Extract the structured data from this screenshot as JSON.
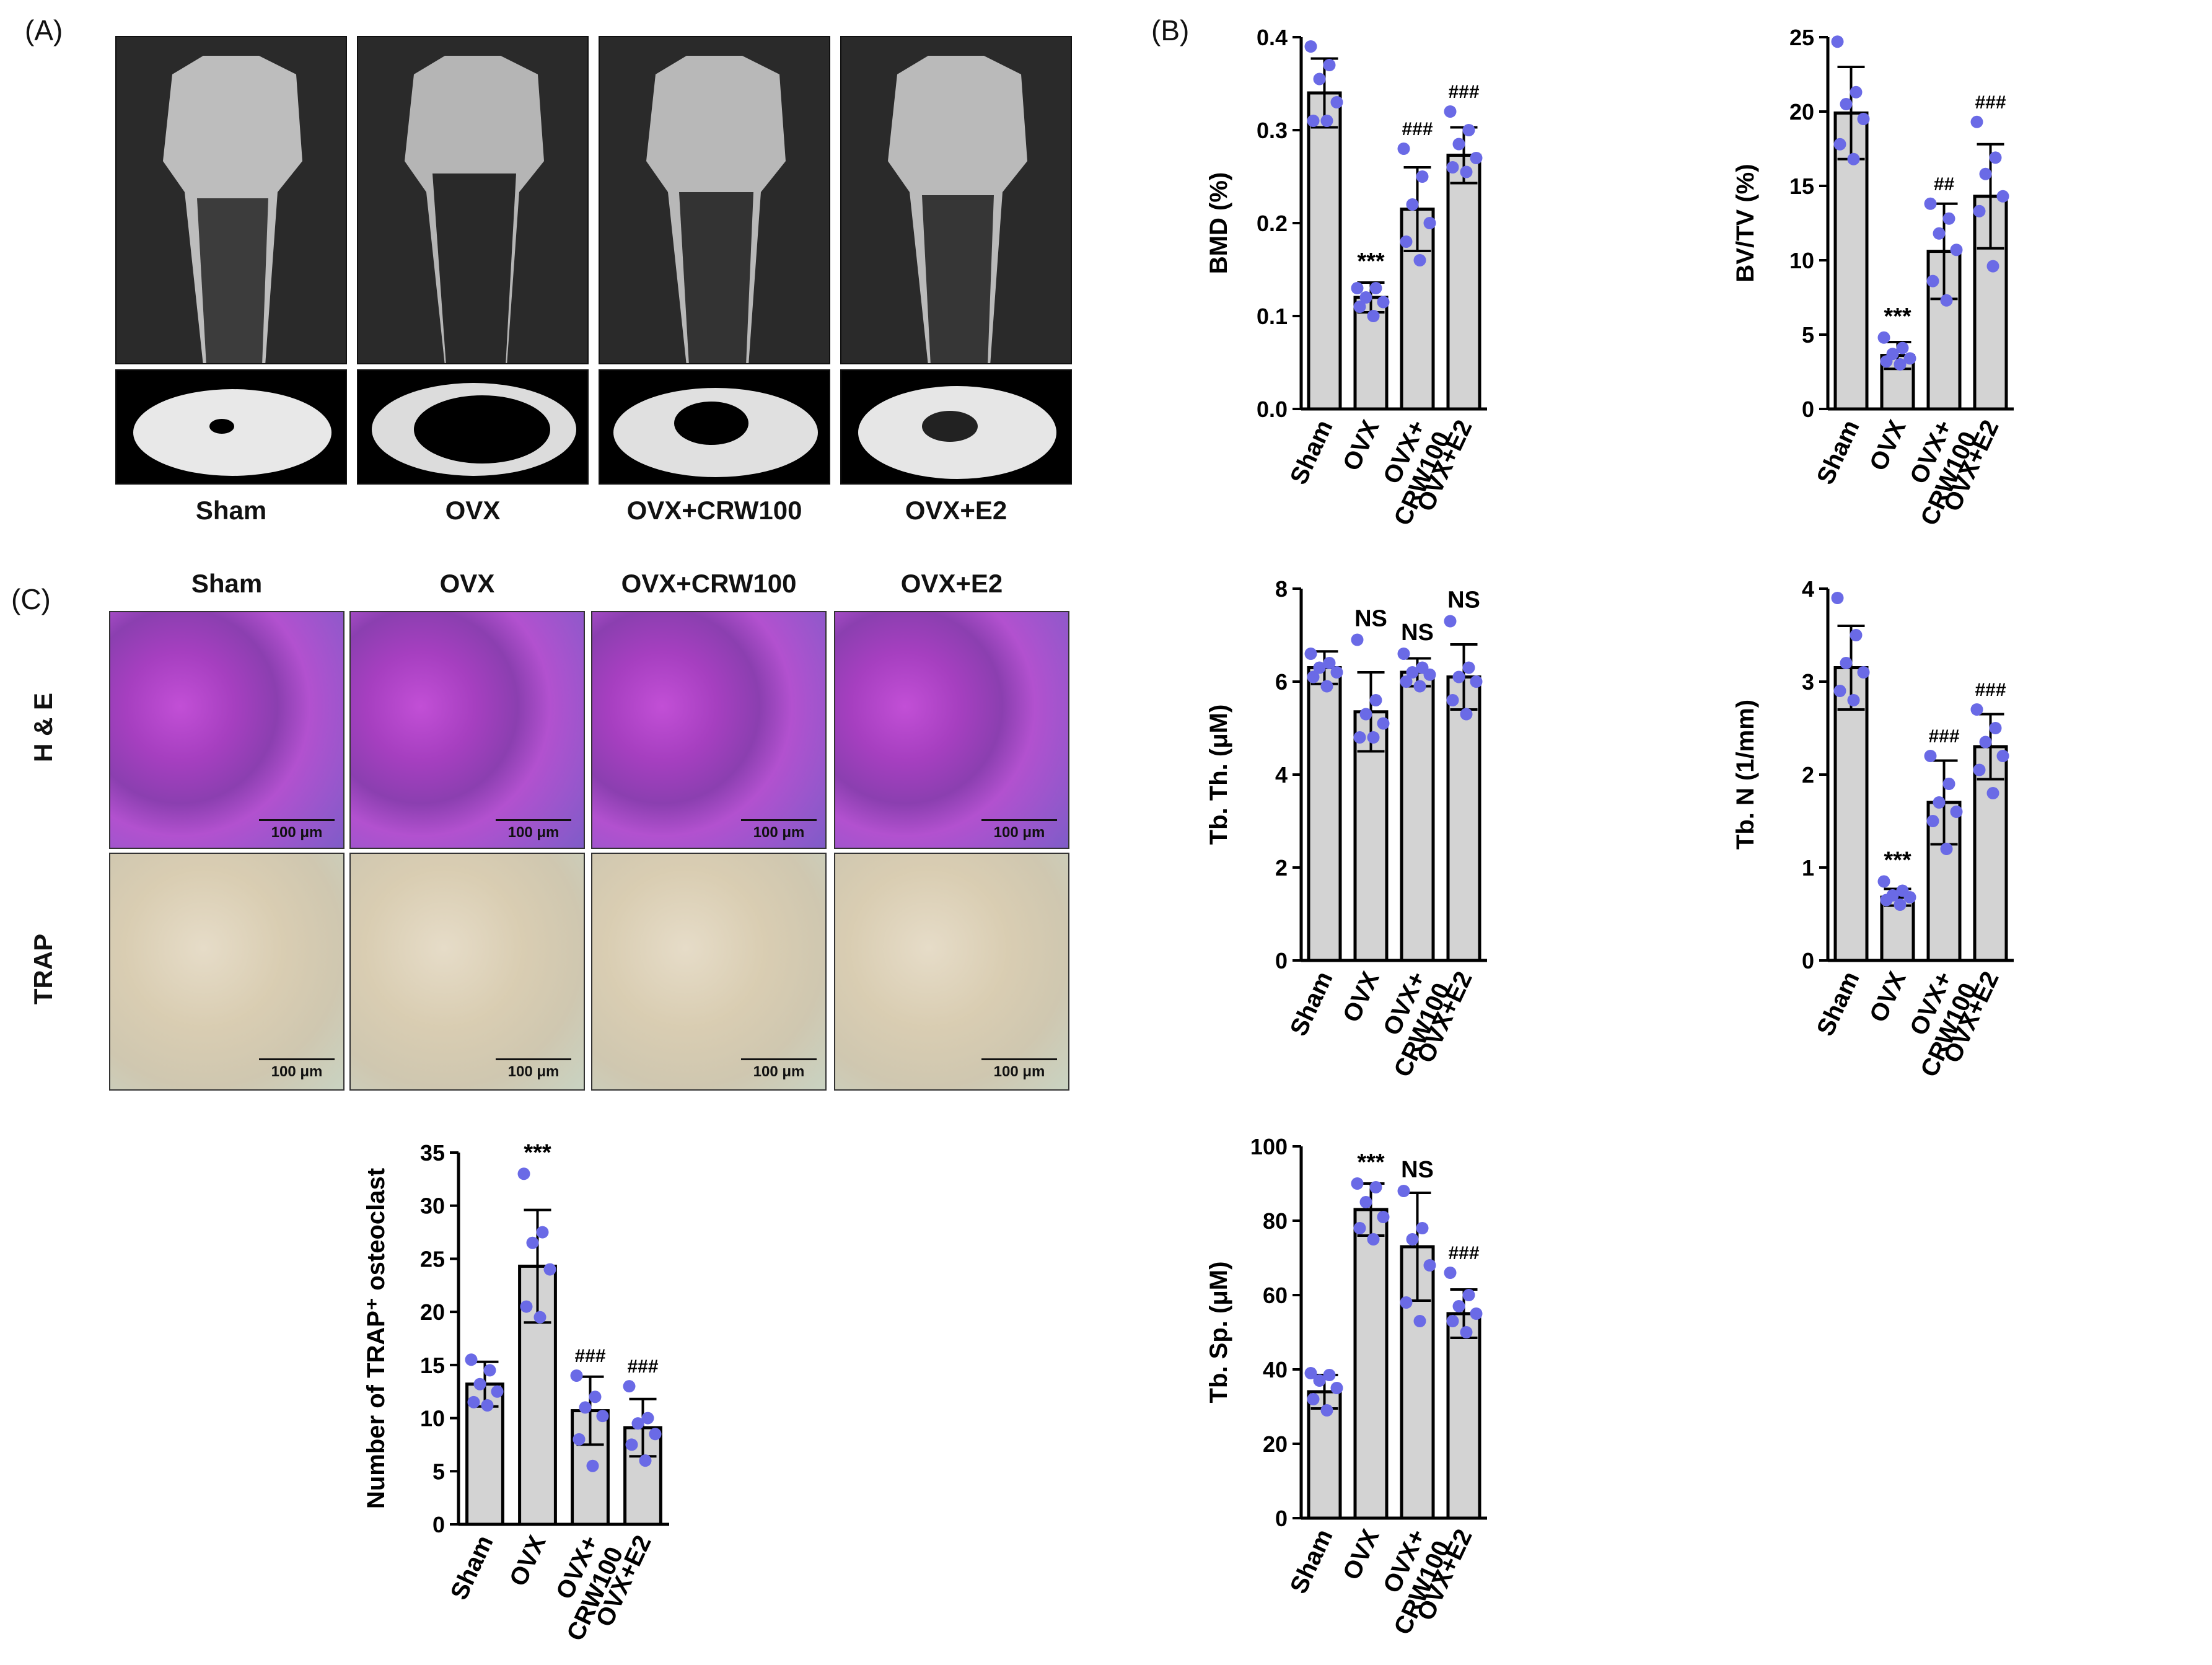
{
  "panels": {
    "a_label": "(A)",
    "b_label": "(B)",
    "c_label": "(C)"
  },
  "groups": [
    "Sham",
    "OVX",
    "OVX+CRW100",
    "OVX+E2"
  ],
  "histology": {
    "rows": [
      "H & E",
      "TRAP"
    ],
    "scale_label": "100 μm"
  },
  "colors": {
    "bar_fill": "#d3d3d3",
    "bar_stroke": "#000000",
    "point": "#6a6ae6"
  },
  "chart_data": [
    {
      "id": "bmd",
      "type": "bar",
      "ylabel": "BMD (%)",
      "categories": [
        "Sham",
        "OVX",
        "OVX+|CRW100",
        "OVX+E2"
      ],
      "values": [
        0.34,
        0.12,
        0.215,
        0.273
      ],
      "errors": [
        0.037,
        0.016,
        0.045,
        0.03
      ],
      "points": [
        [
          0.39,
          0.37,
          0.355,
          0.33,
          0.31,
          0.31
        ],
        [
          0.13,
          0.13,
          0.12,
          0.115,
          0.11,
          0.1
        ],
        [
          0.28,
          0.25,
          0.22,
          0.2,
          0.18,
          0.16
        ],
        [
          0.32,
          0.3,
          0.285,
          0.27,
          0.26,
          0.255
        ]
      ],
      "annotations": [
        "",
        "***",
        "###",
        "###"
      ],
      "ylim": [
        0,
        0.4
      ],
      "yticks": [
        0.0,
        0.1,
        0.2,
        0.3,
        0.4
      ],
      "tick_labels": [
        "0.0",
        "0.1",
        "0.2",
        "0.3",
        "0.4"
      ]
    },
    {
      "id": "bvtv",
      "type": "bar",
      "ylabel": "BV/TV (%)",
      "categories": [
        "Sham",
        "OVX",
        "OVX+|CRW100",
        "OVX+E2"
      ],
      "values": [
        19.9,
        3.6,
        10.6,
        14.3
      ],
      "errors": [
        3.1,
        0.9,
        3.2,
        3.5
      ],
      "points": [
        [
          24.7,
          21.3,
          20.5,
          19.5,
          17.8,
          16.8
        ],
        [
          4.8,
          4.1,
          3.7,
          3.4,
          3.2,
          3.0
        ],
        [
          13.8,
          12.8,
          11.8,
          10.7,
          8.6,
          7.3
        ],
        [
          19.3,
          16.9,
          15.8,
          14.3,
          13.3,
          9.6
        ]
      ],
      "annotations": [
        "",
        "***",
        "##",
        "###"
      ],
      "ylim": [
        0,
        25
      ],
      "yticks": [
        0,
        5,
        10,
        15,
        20,
        25
      ],
      "tick_labels": [
        "0",
        "5",
        "10",
        "15",
        "20",
        "25"
      ]
    },
    {
      "id": "tbth",
      "type": "bar",
      "ylabel": "Tb. Th. (μM)",
      "categories": [
        "Sham",
        "OVX",
        "OVX+|CRW100",
        "OVX+E2"
      ],
      "values": [
        6.3,
        5.35,
        6.2,
        6.1
      ],
      "errors": [
        0.35,
        0.85,
        0.3,
        0.7
      ],
      "points": [
        [
          6.6,
          6.4,
          6.3,
          6.2,
          6.1,
          5.9
        ],
        [
          6.9,
          5.6,
          5.3,
          5.1,
          4.8,
          4.8
        ],
        [
          6.6,
          6.3,
          6.2,
          6.15,
          6.0,
          5.9
        ],
        [
          7.3,
          6.3,
          6.1,
          6.0,
          5.6,
          5.3
        ]
      ],
      "annotations": [
        "",
        "NS",
        "NS",
        "NS"
      ],
      "ylim": [
        0,
        8
      ],
      "yticks": [
        0,
        2,
        4,
        6,
        8
      ],
      "tick_labels": [
        "0",
        "2",
        "4",
        "6",
        "8"
      ]
    },
    {
      "id": "tbn",
      "type": "bar",
      "ylabel": "Tb. N (1/mm)",
      "categories": [
        "Sham",
        "OVX",
        "OVX+|CRW100",
        "OVX+E2"
      ],
      "values": [
        3.15,
        0.68,
        1.7,
        2.3
      ],
      "errors": [
        0.45,
        0.09,
        0.45,
        0.35
      ],
      "points": [
        [
          3.9,
          3.5,
          3.2,
          3.1,
          2.9,
          2.8
        ],
        [
          0.85,
          0.75,
          0.7,
          0.68,
          0.65,
          0.6
        ],
        [
          2.2,
          1.9,
          1.7,
          1.6,
          1.5,
          1.2
        ],
        [
          2.7,
          2.5,
          2.35,
          2.2,
          2.05,
          1.8
        ]
      ],
      "annotations": [
        "",
        "***",
        "###",
        "###"
      ],
      "ylim": [
        0,
        4
      ],
      "yticks": [
        0,
        1,
        2,
        3,
        4
      ],
      "tick_labels": [
        "0",
        "1",
        "2",
        "3",
        "4"
      ]
    },
    {
      "id": "trap_count",
      "type": "bar",
      "ylabel": "Number of TRAP⁺ osteoclast",
      "categories": [
        "Sham",
        "OVX",
        "OVX+|CRW100",
        "OVX+E2"
      ],
      "values": [
        13.2,
        24.3,
        10.7,
        9.1
      ],
      "errors": [
        2.1,
        5.3,
        3.2,
        2.7
      ],
      "points": [
        [
          15.5,
          14.5,
          13.2,
          12.5,
          11.5,
          11.2
        ],
        [
          33,
          27.5,
          26.5,
          24,
          20.5,
          19.5
        ],
        [
          14,
          12,
          11,
          10.2,
          8,
          5.5
        ],
        [
          13,
          10,
          9.5,
          8.5,
          7.5,
          6
        ]
      ],
      "annotations": [
        "",
        "***",
        "###",
        "###"
      ],
      "ylim": [
        0,
        35
      ],
      "yticks": [
        0,
        5,
        10,
        15,
        20,
        25,
        30,
        35
      ],
      "tick_labels": [
        "0",
        "5",
        "10",
        "15",
        "20",
        "25",
        "30",
        "35"
      ]
    },
    {
      "id": "tbsp",
      "type": "bar",
      "ylabel": "Tb. Sp. (μM)",
      "categories": [
        "Sham",
        "OVX",
        "OVX+|CRW100",
        "OVX+E2"
      ],
      "values": [
        34,
        83,
        73,
        55
      ],
      "errors": [
        4.5,
        7,
        14.5,
        6.5
      ],
      "points": [
        [
          39,
          38.5,
          37,
          35,
          32,
          29
        ],
        [
          90,
          89,
          85,
          81,
          78,
          75
        ],
        [
          88,
          78,
          75,
          68,
          58,
          53
        ],
        [
          66,
          60,
          57,
          55,
          53,
          50
        ]
      ],
      "annotations": [
        "",
        "***",
        "NS",
        "###"
      ],
      "ylim": [
        0,
        100
      ],
      "yticks": [
        0,
        20,
        40,
        60,
        80,
        100
      ],
      "tick_labels": [
        "0",
        "20",
        "40",
        "60",
        "80",
        "100"
      ]
    }
  ]
}
